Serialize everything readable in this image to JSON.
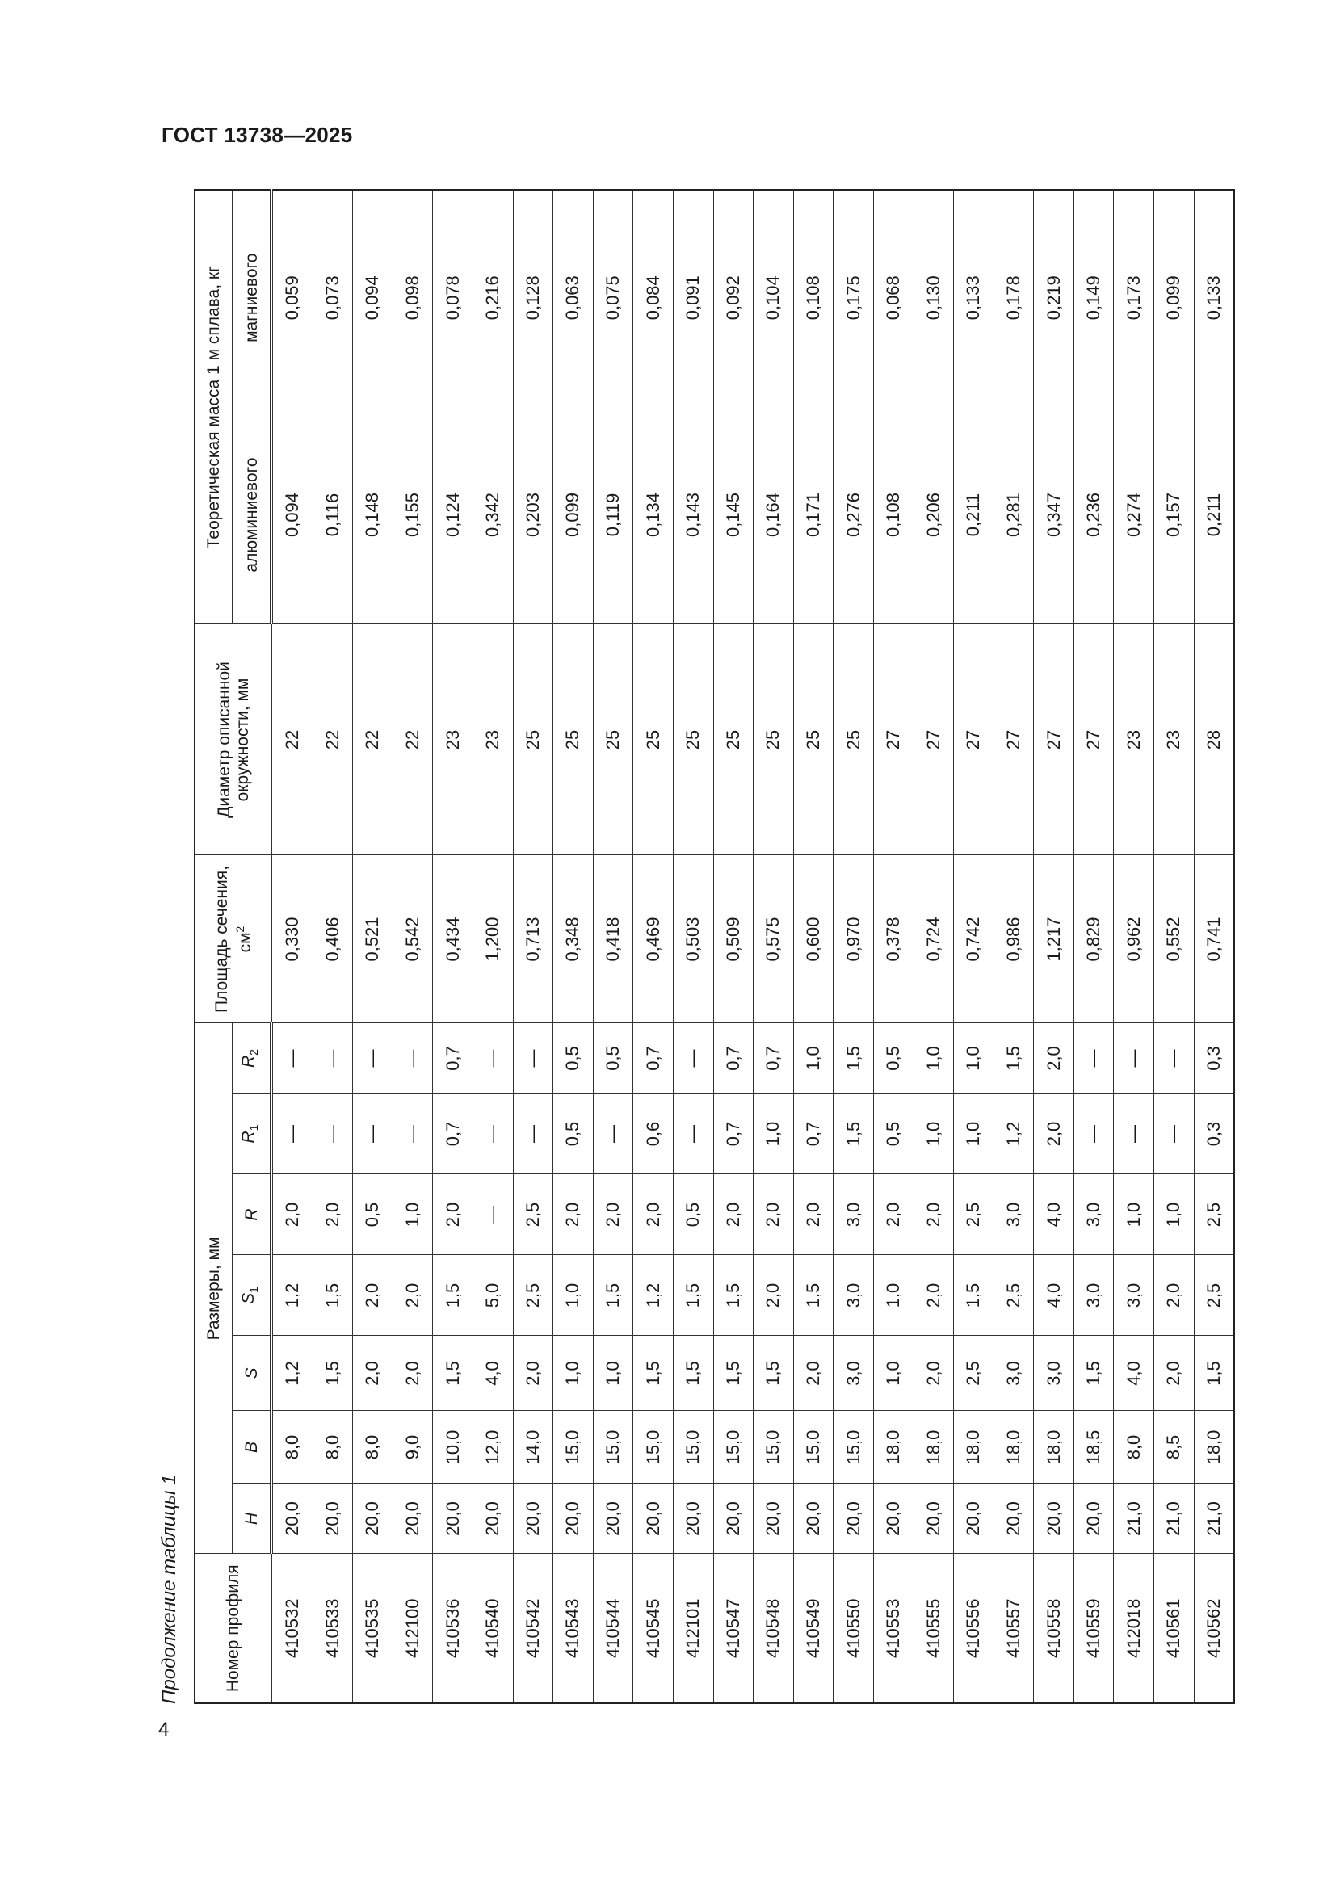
{
  "document": {
    "title": "ГОСТ 13738—2025",
    "page_number": "4",
    "caption": "Продолжение таблицы 1"
  },
  "table": {
    "headers": {
      "profile": "Номер профиля",
      "dimensions": "Размеры, мм",
      "H": "H",
      "B": "B",
      "S": "S",
      "S1": "S",
      "S1_sub": "1",
      "R": "R",
      "R1": "R",
      "R1_sub": "1",
      "R2": "R",
      "R2_sub": "2",
      "area": "Площадь сечения, см",
      "area_sup": "2",
      "diameter": "Диаметр описанной окружности, мм",
      "mass": "Теоретическая масса 1 м сплава, кг",
      "aluminium": "алюминиевого",
      "magnesium": "магниевого"
    },
    "rows": [
      [
        "410532",
        "20,0",
        "8,0",
        "1,2",
        "1,2",
        "2,0",
        "—",
        "—",
        "0,330",
        "22",
        "0,094",
        "0,059"
      ],
      [
        "410533",
        "20,0",
        "8,0",
        "1,5",
        "1,5",
        "2,0",
        "—",
        "—",
        "0,406",
        "22",
        "0,116",
        "0,073"
      ],
      [
        "410535",
        "20,0",
        "8,0",
        "2,0",
        "2,0",
        "0,5",
        "—",
        "—",
        "0,521",
        "22",
        "0,148",
        "0,094"
      ],
      [
        "412100",
        "20,0",
        "9,0",
        "2,0",
        "2,0",
        "1,0",
        "—",
        "—",
        "0,542",
        "22",
        "0,155",
        "0,098"
      ],
      [
        "410536",
        "20,0",
        "10,0",
        "1,5",
        "1,5",
        "2,0",
        "0,7",
        "0,7",
        "0,434",
        "23",
        "0,124",
        "0,078"
      ],
      [
        "410540",
        "20,0",
        "12,0",
        "4,0",
        "5,0",
        "—",
        "—",
        "—",
        "1,200",
        "23",
        "0,342",
        "0,216"
      ],
      [
        "410542",
        "20,0",
        "14,0",
        "2,0",
        "2,5",
        "2,5",
        "—",
        "—",
        "0,713",
        "25",
        "0,203",
        "0,128"
      ],
      [
        "410543",
        "20,0",
        "15,0",
        "1,0",
        "1,0",
        "2,0",
        "0,5",
        "0,5",
        "0,348",
        "25",
        "0,099",
        "0,063"
      ],
      [
        "410544",
        "20,0",
        "15,0",
        "1,0",
        "1,5",
        "2,0",
        "—",
        "0,5",
        "0,418",
        "25",
        "0,119",
        "0,075"
      ],
      [
        "410545",
        "20,0",
        "15,0",
        "1,5",
        "1,2",
        "2,0",
        "0,6",
        "0,7",
        "0,469",
        "25",
        "0,134",
        "0,084"
      ],
      [
        "412101",
        "20,0",
        "15,0",
        "1,5",
        "1,5",
        "0,5",
        "—",
        "—",
        "0,503",
        "25",
        "0,143",
        "0,091"
      ],
      [
        "410547",
        "20,0",
        "15,0",
        "1,5",
        "1,5",
        "2,0",
        "0,7",
        "0,7",
        "0,509",
        "25",
        "0,145",
        "0,092"
      ],
      [
        "410548",
        "20,0",
        "15,0",
        "1,5",
        "2,0",
        "2,0",
        "1,0",
        "0,7",
        "0,575",
        "25",
        "0,164",
        "0,104"
      ],
      [
        "410549",
        "20,0",
        "15,0",
        "2,0",
        "1,5",
        "2,0",
        "0,7",
        "1,0",
        "0,600",
        "25",
        "0,171",
        "0,108"
      ],
      [
        "410550",
        "20,0",
        "15,0",
        "3,0",
        "3,0",
        "3,0",
        "1,5",
        "1,5",
        "0,970",
        "25",
        "0,276",
        "0,175"
      ],
      [
        "410553",
        "20,0",
        "18,0",
        "1,0",
        "1,0",
        "2,0",
        "0,5",
        "0,5",
        "0,378",
        "27",
        "0,108",
        "0,068"
      ],
      [
        "410555",
        "20,0",
        "18,0",
        "2,0",
        "2,0",
        "2,0",
        "1,0",
        "1,0",
        "0,724",
        "27",
        "0,206",
        "0,130"
      ],
      [
        "410556",
        "20,0",
        "18,0",
        "2,5",
        "1,5",
        "2,5",
        "1,0",
        "1,0",
        "0,742",
        "27",
        "0,211",
        "0,133"
      ],
      [
        "410557",
        "20,0",
        "18,0",
        "3,0",
        "2,5",
        "3,0",
        "1,2",
        "1,5",
        "0,986",
        "27",
        "0,281",
        "0,178"
      ],
      [
        "410558",
        "20,0",
        "18,0",
        "3,0",
        "4,0",
        "4,0",
        "2,0",
        "2,0",
        "1,217",
        "27",
        "0,347",
        "0,219"
      ],
      [
        "410559",
        "20,0",
        "18,5",
        "1,5",
        "3,0",
        "3,0",
        "—",
        "—",
        "0,829",
        "27",
        "0,236",
        "0,149"
      ],
      [
        "412018",
        "21,0",
        "8,0",
        "4,0",
        "3,0",
        "1,0",
        "—",
        "—",
        "0,962",
        "23",
        "0,274",
        "0,173"
      ],
      [
        "410561",
        "21,0",
        "8,5",
        "2,0",
        "2,0",
        "1,0",
        "—",
        "—",
        "0,552",
        "23",
        "0,157",
        "0,099"
      ],
      [
        "410562",
        "21,0",
        "18,0",
        "1,5",
        "2,5",
        "2,5",
        "0,3",
        "0,3",
        "0,741",
        "28",
        "0,211",
        "0,133"
      ]
    ]
  }
}
